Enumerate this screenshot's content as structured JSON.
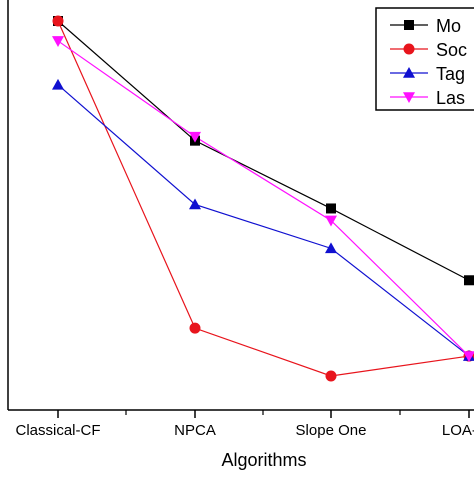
{
  "chart_data": {
    "type": "line",
    "title": "",
    "xlabel": "Algorithms",
    "ylabel": "",
    "categories": [
      "Classical-CF",
      "NPCA",
      "Slope One",
      "LOA-FS"
    ],
    "ylim": [
      0,
      10
    ],
    "grid": false,
    "legend_position": "top-right",
    "series": [
      {
        "name": "Mo",
        "color": "#000000",
        "marker": "square",
        "values": [
          9.6,
          6.6,
          4.9,
          3.1
        ]
      },
      {
        "name": "Soc",
        "color": "#e8141c",
        "marker": "circle",
        "values": [
          9.6,
          1.9,
          0.7,
          1.2
        ]
      },
      {
        "name": "Tag",
        "color": "#1010d0",
        "marker": "triangle-up",
        "values": [
          8.0,
          5.0,
          3.9,
          1.2
        ]
      },
      {
        "name": "Las",
        "color": "#ff10ff",
        "marker": "triangle-down",
        "values": [
          9.1,
          6.7,
          4.6,
          1.2
        ]
      }
    ]
  }
}
